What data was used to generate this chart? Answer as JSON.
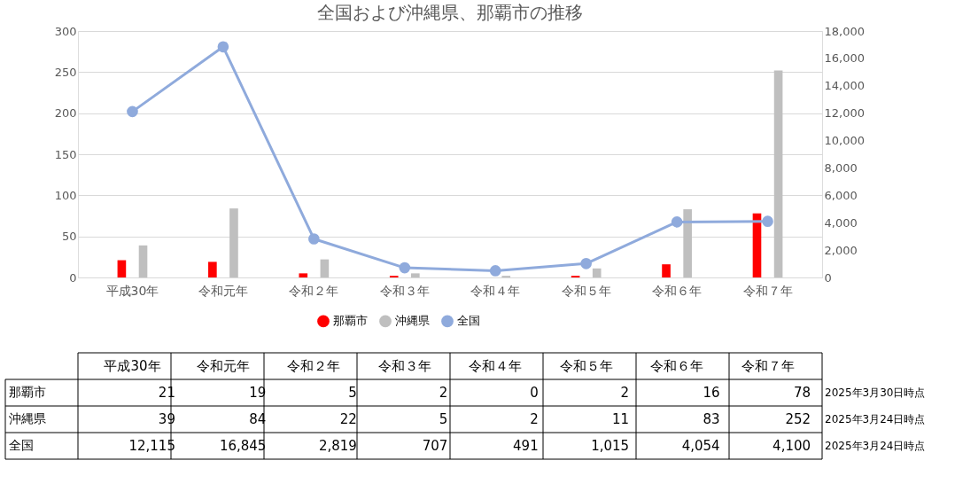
{
  "chart_data": {
    "type": "bar",
    "title": "全国および沖縄県、那覇市の推移",
    "categories": [
      "平成30年",
      "令和元年",
      "令和２年",
      "令和３年",
      "令和４年",
      "令和５年",
      "令和６年",
      "令和７年"
    ],
    "series": [
      {
        "name": "那覇市",
        "color": "#ff0000",
        "values": [
          21,
          19,
          5,
          2,
          0,
          2,
          16,
          78
        ]
      },
      {
        "name": "沖縄県",
        "color": "#bfbfbf",
        "values": [
          39,
          84,
          22,
          5,
          2,
          11,
          83,
          252
        ]
      },
      {
        "name": "全国",
        "color": "#8faadc",
        "type": "line",
        "axis": "y2",
        "marker": "circle",
        "values": [
          12115,
          16845,
          2819,
          707,
          491,
          1015,
          4054,
          4100
        ],
        "value_labels": [
          "12,115",
          "16,845",
          "2,819",
          "707",
          "491",
          "1,015",
          "4,054",
          "4,100"
        ]
      }
    ],
    "ylim": [
      0,
      300
    ],
    "yticks": [
      0,
      50,
      100,
      150,
      200,
      250,
      300
    ],
    "y2lim": [
      0,
      18000
    ],
    "y2ticks": [
      {
        "value": 0,
        "label": "0"
      },
      {
        "value": 2000,
        "label": "2,000"
      },
      {
        "value": 4000,
        "label": "4,000"
      },
      {
        "value": 6000,
        "label": "6,000"
      },
      {
        "value": 8000,
        "label": "8,000"
      },
      {
        "value": 10000,
        "label": "10,000"
      },
      {
        "value": 12000,
        "label": "12,000"
      },
      {
        "value": 14000,
        "label": "14,000"
      },
      {
        "value": 16000,
        "label": "16,000"
      },
      {
        "value": 18000,
        "label": "18,000"
      }
    ],
    "grid": "y",
    "legend": "bottom",
    "data_labels": true,
    "annotations": [
      "2025年3月30日時点",
      "2025年3月24日時点",
      "2025年3月24日時点"
    ]
  }
}
